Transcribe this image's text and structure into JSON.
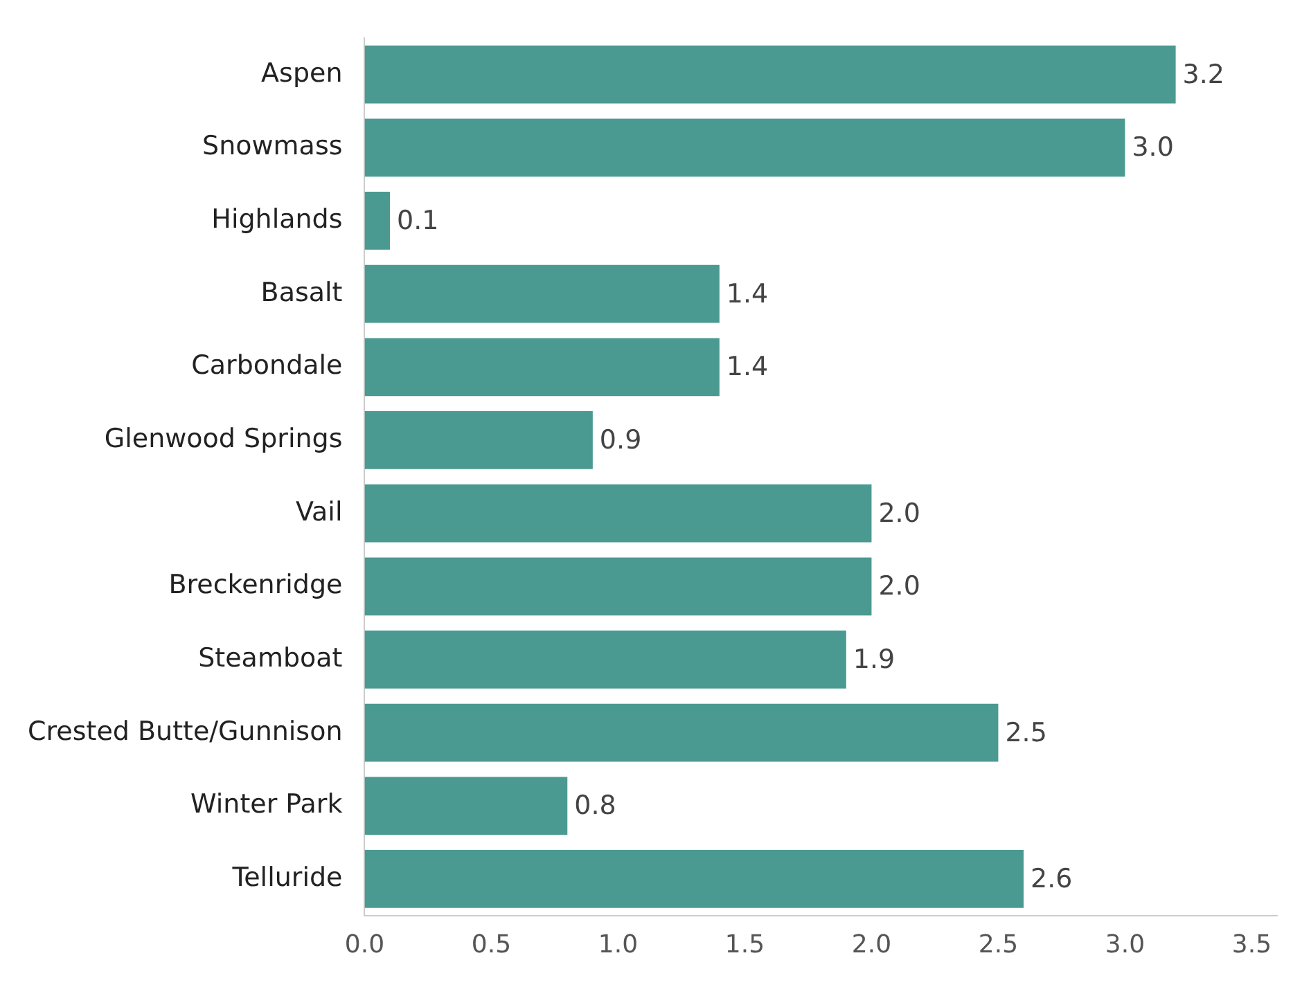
{
  "chart_data": {
    "type": "bar",
    "orientation": "horizontal",
    "categories": [
      "Aspen",
      "Snowmass",
      "Highlands",
      "Basalt",
      "Carbondale",
      "Glenwood Springs",
      "Vail",
      "Breckenridge",
      "Steamboat",
      "Crested Butte/Gunnison",
      "Winter Park",
      "Telluride"
    ],
    "values": [
      3.2,
      3.0,
      0.1,
      1.4,
      1.4,
      0.9,
      2.0,
      2.0,
      1.9,
      2.5,
      0.8,
      2.6
    ],
    "value_labels": [
      "3.2",
      "3.0",
      "0.1",
      "1.4",
      "1.4",
      "0.9",
      "2.0",
      "2.0",
      "1.9",
      "2.5",
      "0.8",
      "2.6"
    ],
    "color": "#4a9a91",
    "xlim": [
      0,
      3.6
    ],
    "xticks": [
      {
        "value": 0,
        "label": "0.0"
      },
      {
        "value": 0.5,
        "label": "0.5"
      },
      {
        "value": 1,
        "label": "1.0"
      },
      {
        "value": 1.5,
        "label": "1.5"
      },
      {
        "value": 2,
        "label": "2.0"
      },
      {
        "value": 2.5,
        "label": "2.5"
      },
      {
        "value": 3,
        "label": "3.0"
      },
      {
        "value": 3.5,
        "label": "3.5"
      }
    ],
    "grid": false,
    "legend": false
  }
}
